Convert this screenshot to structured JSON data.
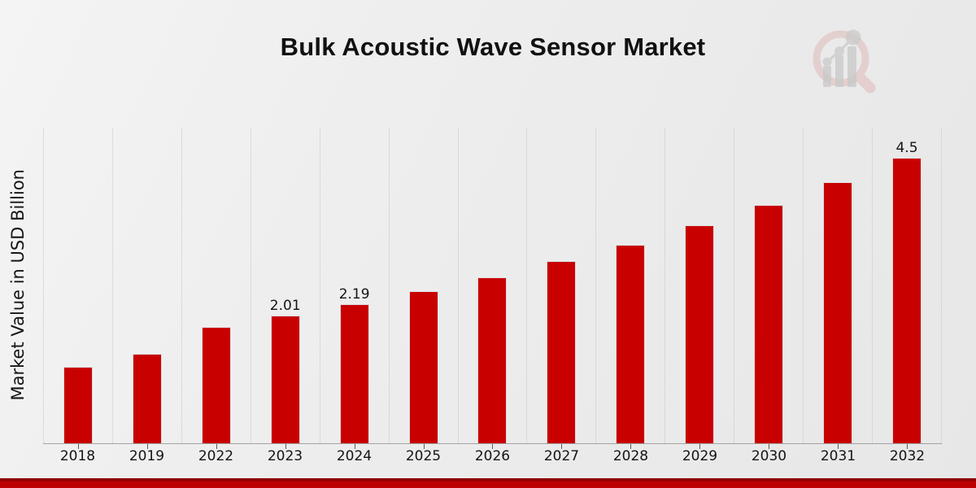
{
  "chart_data": {
    "type": "bar",
    "title": "Bulk Acoustic Wave Sensor Market",
    "ylabel": "Market Value in USD Billion",
    "xlabel": "",
    "categories": [
      "2018",
      "2019",
      "2022",
      "2023",
      "2024",
      "2025",
      "2026",
      "2027",
      "2028",
      "2029",
      "2030",
      "2031",
      "2032"
    ],
    "values": [
      1.2,
      1.41,
      1.83,
      2.01,
      2.19,
      2.4,
      2.62,
      2.87,
      3.13,
      3.44,
      3.76,
      4.11,
      4.5
    ],
    "point_labels": [
      null,
      null,
      null,
      "2.01",
      "2.19",
      null,
      null,
      null,
      null,
      null,
      null,
      null,
      "4.5"
    ],
    "ylim": [
      0,
      4.96
    ],
    "grid": "vertical-dotted",
    "legend": "none"
  },
  "colors": {
    "bar": "#c80000",
    "grid_line": "#c7c7c7",
    "axis_line": "#a3a3a3",
    "bottom_band": "#bf0000",
    "bottom_band_edge": "#8e0000",
    "logo_ring": "#dcb9b9",
    "logo_bars": "#c6c6c6"
  },
  "icons": {
    "logo": "magnifier-bar-chart-logo"
  }
}
